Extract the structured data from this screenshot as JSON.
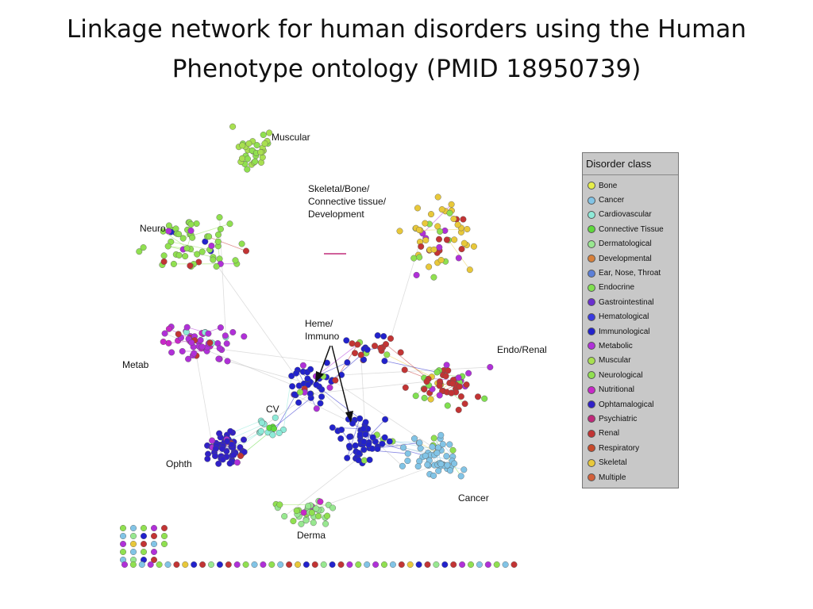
{
  "slide": {
    "title_line1": "Linkage network for human disorders using the Human",
    "title_line2": "Phenotype ontology (PMID 18950739)"
  },
  "labels": {
    "muscular": "Muscular",
    "skeletal_line1": "Skeletal/Bone/",
    "skeletal_line2": "Connective tissue/",
    "skeletal_line3": "Development",
    "neuro": "Neuro",
    "heme_line1": "Heme/",
    "heme_line2": "Immuno",
    "endo_renal": "Endo/Renal",
    "metab": "Metab",
    "cv": "CV",
    "ophth": "Ophth",
    "cancer": "Cancer",
    "derma": "Derma"
  },
  "legend": {
    "title": "Disorder class",
    "items": [
      {
        "label": "Bone",
        "color": "#e6ee4a"
      },
      {
        "label": "Cancer",
        "color": "#82c4e6"
      },
      {
        "label": "Cardiovascular",
        "color": "#8eead8"
      },
      {
        "label": "Connective Tissue",
        "color": "#5fd93c"
      },
      {
        "label": "Dermatological",
        "color": "#98e890"
      },
      {
        "label": "Developmental",
        "color": "#d8803a"
      },
      {
        "label": "Ear, Nose, Throat",
        "color": "#5b7fd8"
      },
      {
        "label": "Endocrine",
        "color": "#80e050"
      },
      {
        "label": "Gastrointestinal",
        "color": "#6a2fcf"
      },
      {
        "label": "Hematological",
        "color": "#3a3ae0"
      },
      {
        "label": "Immunological",
        "color": "#2222cc"
      },
      {
        "label": "Metabolic",
        "color": "#b030d8"
      },
      {
        "label": "Muscular",
        "color": "#a8e050"
      },
      {
        "label": "Neurological",
        "color": "#90e050"
      },
      {
        "label": "Nutritional",
        "color": "#c828c8"
      },
      {
        "label": "Ophtamalogical",
        "color": "#3020c8"
      },
      {
        "label": "Psychiatric",
        "color": "#c0287a"
      },
      {
        "label": "Renal",
        "color": "#c23434"
      },
      {
        "label": "Respiratory",
        "color": "#c84a2a"
      },
      {
        "label": "Skeletal",
        "color": "#e8c83a"
      },
      {
        "label": "Multiple",
        "color": "#d2603a"
      }
    ]
  }
}
